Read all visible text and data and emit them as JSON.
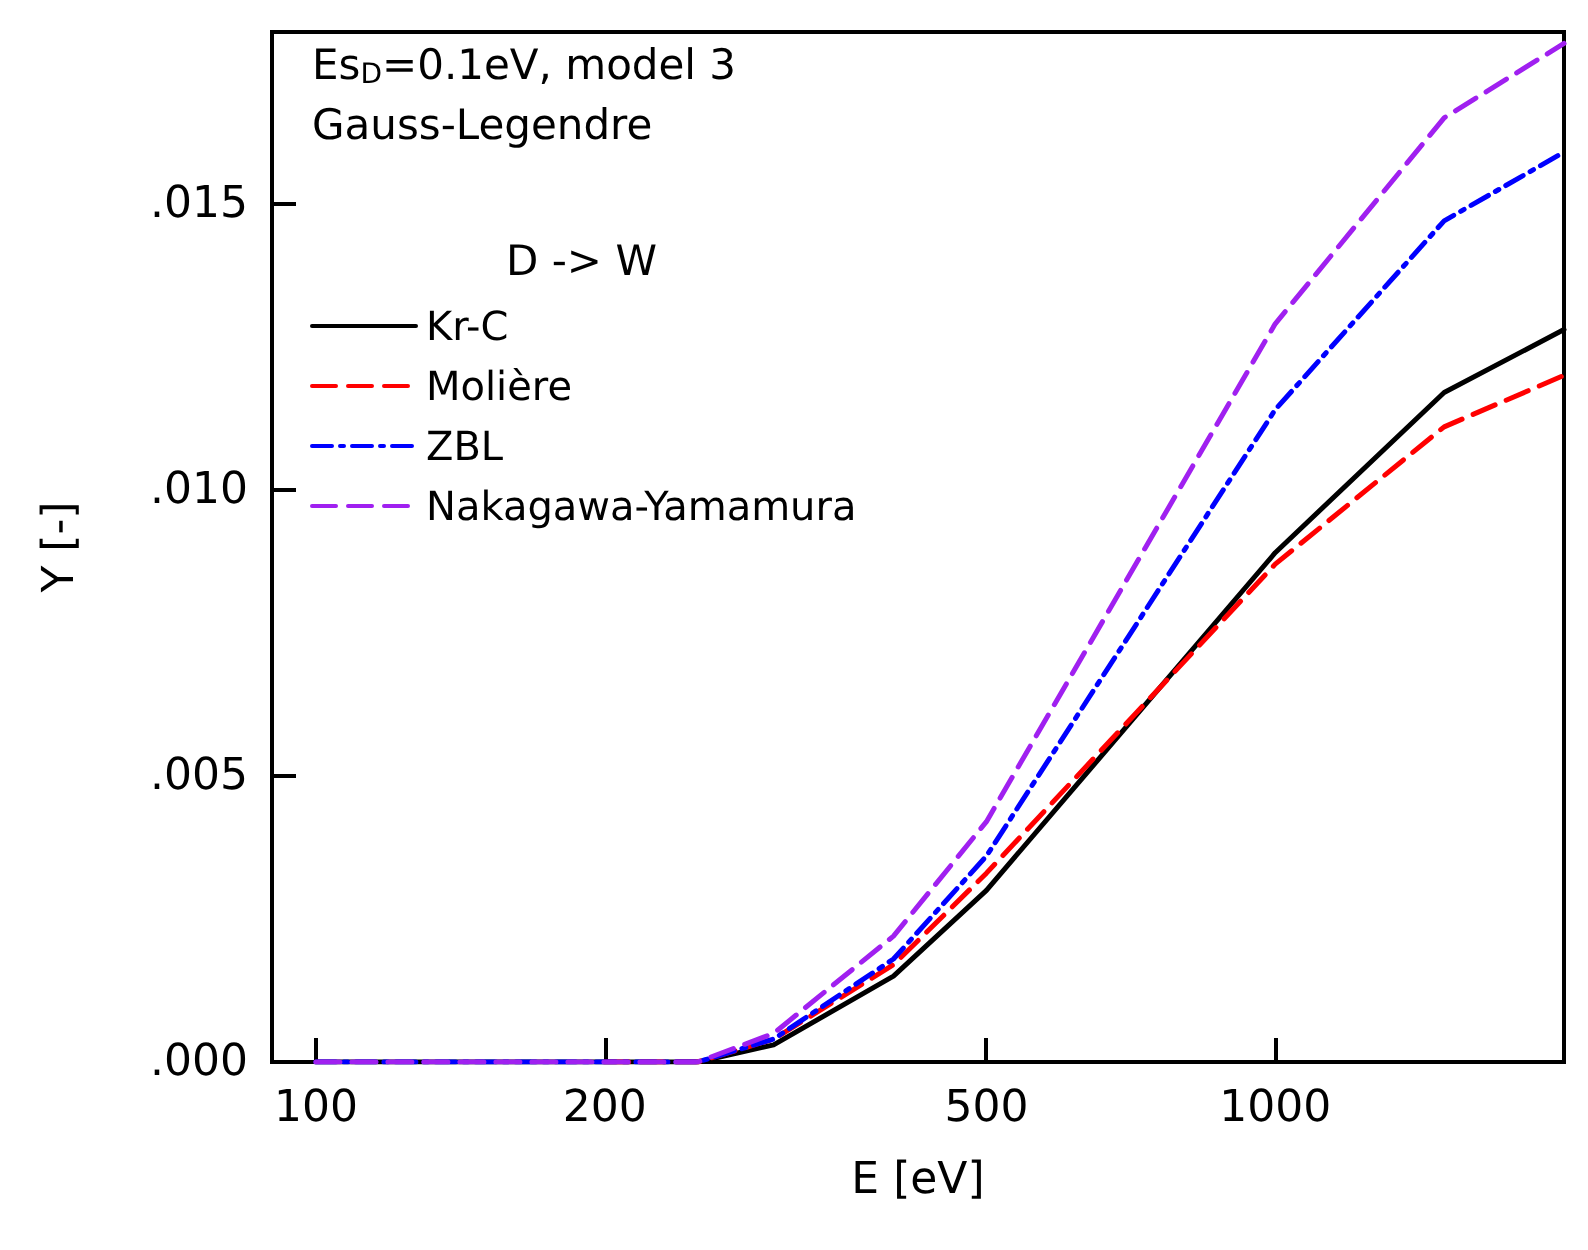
{
  "chart_data": {
    "type": "line",
    "xlabel": "E [eV]",
    "ylabel": "Y [-]",
    "legend_title": "D -> W",
    "annotations": [
      "Es$_{D}$=0.1eV, model 3",
      "Gauss-Legendre"
    ],
    "x": [
      100,
      150,
      200,
      250,
      300,
      400,
      500,
      1000,
      1500,
      2000
    ],
    "series": [
      {
        "name": "Kr-C",
        "color": "#000000",
        "line_style": "solid",
        "values": [
          0,
          0,
          0,
          0,
          0.0003,
          0.0015,
          0.003,
          0.0089,
          0.0117,
          0.0128
        ]
      },
      {
        "name": "Molière",
        "color": "#ff0000",
        "line_style": "dashed",
        "values": [
          null,
          null,
          0,
          0,
          0.0004,
          0.0017,
          0.0033,
          0.0087,
          0.0111,
          0.012
        ]
      },
      {
        "name": "ZBL",
        "color": "#0000ff",
        "line_style": "dashdot",
        "values": [
          0,
          0,
          0,
          0,
          0.0004,
          0.0018,
          0.0036,
          0.0114,
          0.0147,
          0.0159
        ]
      },
      {
        "name": "Nakagawa-Yamamura",
        "color": "#a020f0",
        "line_style": "dashed",
        "values": [
          0,
          0,
          0,
          0,
          0.0005,
          0.0022,
          0.0042,
          0.0129,
          0.0165,
          0.0178
        ]
      }
    ],
    "log": "x",
    "xlim": [
      90,
      2000
    ],
    "xticks": [
      100,
      200,
      500,
      1000
    ],
    "ylim": [
      0,
      0.018
    ],
    "yticks": [
      {
        "value": 0,
        "label": ".000"
      },
      {
        "value": 0.005,
        "label": ".005"
      },
      {
        "value": 0.01,
        "label": ".010"
      },
      {
        "value": 0.015,
        "label": ".015"
      }
    ],
    "grid": false,
    "legend": "top left",
    "marker": "none"
  }
}
